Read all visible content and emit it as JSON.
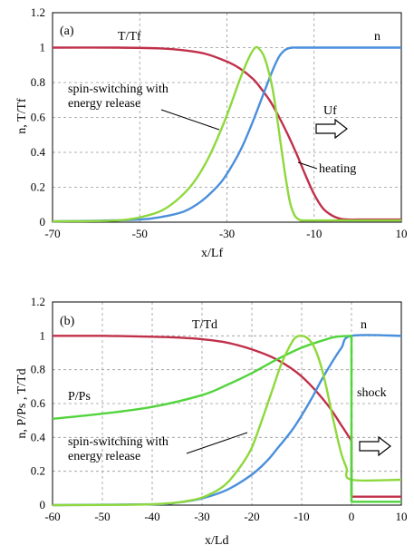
{
  "chart_data": [
    {
      "type": "line",
      "panel_label": "(a)",
      "xlim": [
        -70,
        10
      ],
      "ylim": [
        0,
        1.2
      ],
      "x_ticks": [
        "-70",
        "-50",
        "-30",
        "-10",
        "10"
      ],
      "y_ticks": [
        "0",
        "0.2",
        "0.4",
        "0.6",
        "0.8",
        "1",
        "1.2"
      ],
      "xlabel": "x/Lf",
      "ylabel": "n, T/Tf",
      "annotations": {
        "t_label": "T/Tf",
        "n_label": "n",
        "spin_line1": "spin-switching  with",
        "spin_line2": "energy release",
        "velocity": "Uf",
        "heating": "heating"
      },
      "series": [
        {
          "name": "T/Tf",
          "color": "#c0304a",
          "x": [
            -70,
            -55,
            -45,
            -40,
            -35,
            -30,
            -27,
            -24,
            -22,
            -20,
            -18,
            -16,
            -14,
            -12,
            -10,
            -8,
            -6,
            -4,
            -2,
            0,
            5,
            10
          ],
          "y": [
            1.0,
            1.0,
            0.995,
            0.985,
            0.965,
            0.92,
            0.88,
            0.82,
            0.76,
            0.69,
            0.6,
            0.5,
            0.39,
            0.27,
            0.16,
            0.08,
            0.04,
            0.02,
            0.015,
            0.015,
            0.015,
            0.015
          ]
        },
        {
          "name": "n",
          "color": "#4a8fdc",
          "x": [
            -70,
            -60,
            -50,
            -45,
            -40,
            -37,
            -34,
            -31,
            -28,
            -26,
            -24,
            -22,
            -20,
            -19,
            -18,
            -17,
            -16,
            -15,
            -14,
            -12,
            -10,
            0,
            10
          ],
          "y": [
            0.005,
            0.008,
            0.015,
            0.03,
            0.06,
            0.1,
            0.16,
            0.24,
            0.36,
            0.46,
            0.58,
            0.71,
            0.84,
            0.9,
            0.95,
            0.98,
            0.995,
            1.0,
            1.0,
            1.0,
            1.0,
            1.0,
            1.0
          ]
        },
        {
          "name": "spin-switching with energy release",
          "color": "#8ed83c",
          "x": [
            -70,
            -55,
            -48,
            -44,
            -40,
            -37,
            -34,
            -31,
            -29,
            -27,
            -25,
            -23.5,
            -22.5,
            -21.5,
            -20.5,
            -19.5,
            -18.5,
            -17.5,
            -16.5,
            -15.5,
            -14.5,
            -13.5,
            -12.5,
            -11,
            10
          ],
          "y": [
            0.005,
            0.01,
            0.04,
            0.08,
            0.16,
            0.25,
            0.38,
            0.55,
            0.68,
            0.82,
            0.94,
            1.0,
            0.99,
            0.95,
            0.87,
            0.76,
            0.6,
            0.42,
            0.25,
            0.11,
            0.04,
            0.015,
            0.01,
            0.01,
            0.01
          ]
        }
      ]
    },
    {
      "type": "line",
      "panel_label": "(b)",
      "xlim": [
        -60,
        10
      ],
      "ylim": [
        0,
        1.2
      ],
      "x_ticks": [
        "-60",
        "-50",
        "-40",
        "-30",
        "-20",
        "-10",
        "0",
        "10"
      ],
      "y_ticks": [
        "0",
        "0.2",
        "0.4",
        "0.6",
        "0.8",
        "1",
        "1.2"
      ],
      "xlabel": "x/Ld",
      "ylabel": "n, P/Ps , T/Td",
      "annotations": {
        "t_label": "T/Td",
        "n_label": "n",
        "p_label": "P/Ps",
        "shock": "shock",
        "spin_line1": "spin-switching  with",
        "spin_line2": "energy release"
      },
      "series": [
        {
          "name": "T/Td",
          "color": "#c0304a",
          "x": [
            -60,
            -50,
            -40,
            -35,
            -30,
            -25,
            -20,
            -15,
            -10,
            -5,
            -2,
            0,
            0,
            10
          ],
          "y": [
            1.0,
            1.0,
            0.995,
            0.99,
            0.98,
            0.96,
            0.92,
            0.86,
            0.76,
            0.6,
            0.47,
            0.38,
            0.05,
            0.05
          ]
        },
        {
          "name": "n",
          "color": "#4a8fdc",
          "x": [
            -60,
            -40,
            -35,
            -30,
            -25,
            -20,
            -17,
            -15,
            -12,
            -10,
            -8,
            -6,
            -4,
            -2,
            0,
            10
          ],
          "y": [
            0.0,
            0.005,
            0.015,
            0.04,
            0.09,
            0.18,
            0.26,
            0.33,
            0.44,
            0.53,
            0.63,
            0.74,
            0.84,
            0.93,
            1.0,
            1.0
          ]
        },
        {
          "name": "P/Ps",
          "color": "#52d43c",
          "x": [
            -60,
            -50,
            -40,
            -30,
            -25,
            -20,
            -15,
            -10,
            -5,
            -3,
            0,
            0,
            10
          ],
          "y": [
            0.51,
            0.54,
            0.58,
            0.65,
            0.71,
            0.78,
            0.86,
            0.93,
            0.98,
            0.995,
            1.0,
            0.02,
            0.02
          ]
        },
        {
          "name": "spin-switching with energy release",
          "color": "#8ed83c",
          "x": [
            -60,
            -40,
            -32,
            -28,
            -25,
            -22,
            -20,
            -18,
            -16,
            -14,
            -12,
            -11,
            -10,
            -9,
            -8,
            -7,
            -6,
            -5,
            -4,
            -3,
            -2,
            -1,
            0,
            10
          ],
          "y": [
            0.0,
            0.005,
            0.03,
            0.07,
            0.13,
            0.24,
            0.34,
            0.5,
            0.67,
            0.84,
            0.96,
            0.995,
            1.0,
            0.99,
            0.96,
            0.9,
            0.81,
            0.69,
            0.55,
            0.42,
            0.3,
            0.22,
            0.15,
            0.15
          ]
        }
      ]
    }
  ]
}
